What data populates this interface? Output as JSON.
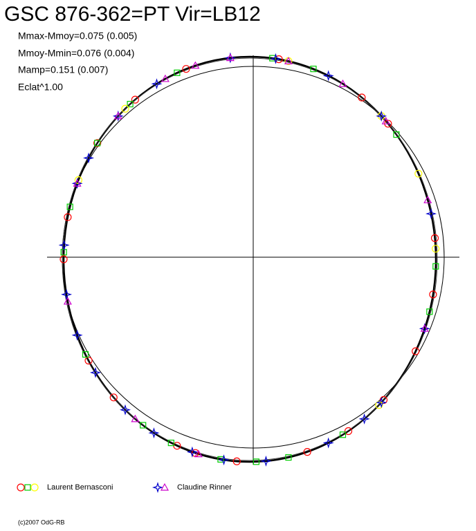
{
  "chart_data": {
    "type": "polar-phase",
    "title": "GSC 876-362=PT Vir=LB12",
    "stats": [
      "Mmax-Mmoy=0.075 (0.005)",
      "Mmoy-Mmin=0.076 (0.004)",
      "Mamp=0.151 (0.007)",
      "Eclat^1.00"
    ],
    "legend": [
      {
        "name": "Laurent Bernasconi",
        "series": [
          0,
          1,
          2
        ]
      },
      {
        "name": "Claudine Rinner",
        "series": [
          3,
          4
        ]
      }
    ],
    "series": [
      {
        "shape": "circle",
        "color": "#ff0000",
        "angles": [
          9,
          37,
          48,
          84,
          100,
          117,
          134,
          148,
          162,
          184,
          197,
          203,
          227,
          240,
          270,
          282,
          305,
          322,
          340
        ]
      },
      {
        "shape": "square",
        "color": "#00cc00",
        "angles": [
          7,
          20,
          52,
          92,
          105,
          150,
          168,
          178,
          189,
          205,
          215,
          242,
          272,
          285,
          305,
          320,
          337
        ]
      },
      {
        "shape": "circle",
        "color": "#ffff00",
        "angles": [
          12,
          45,
          65,
          87,
          136,
          293,
          318
        ]
      },
      {
        "shape": "star",
        "color": "#0000cc",
        "angles": [
          8,
          354,
          25,
          45,
          77,
          110,
          135,
          142,
          155,
          175,
          188,
          198,
          211,
          222,
          236,
          248,
          260,
          274,
          292,
          300,
          315,
          330
        ]
      },
      {
        "shape": "triangle",
        "color": "#cc00cc",
        "angles": [
          12,
          30,
          47,
          73,
          110,
          196,
          218,
          258,
          292,
          315,
          333,
          343,
          354
        ]
      }
    ],
    "copyright": "(c)2007 OdG-RB"
  }
}
